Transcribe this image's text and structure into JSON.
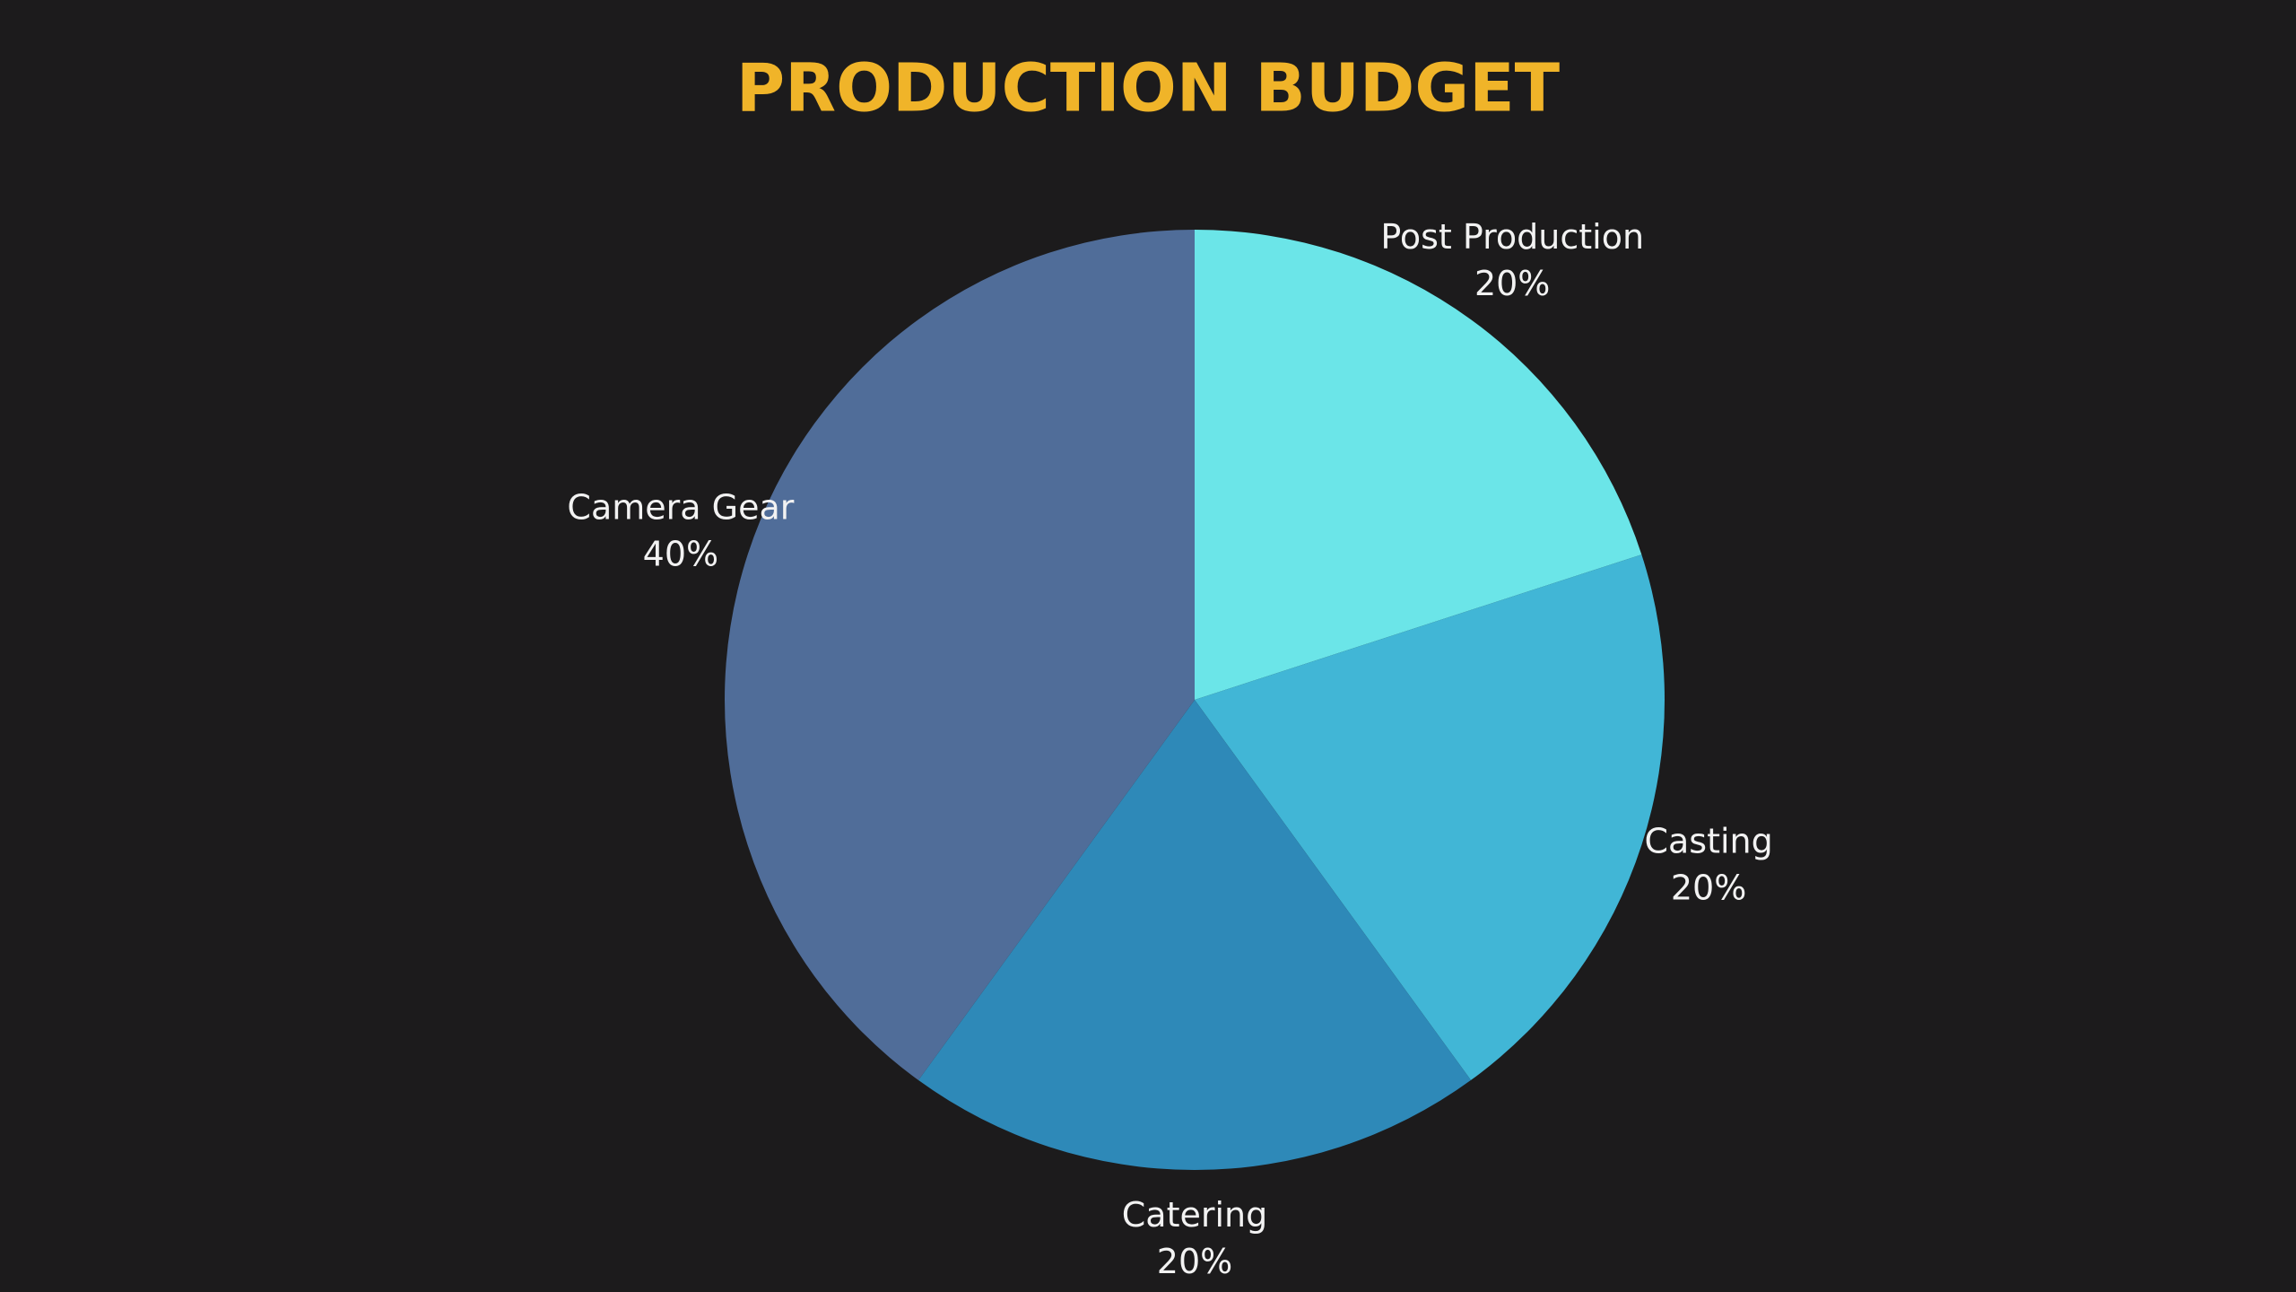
{
  "chart_data": {
    "type": "pie",
    "title": "PRODUCTION BUDGET",
    "categories": [
      "Post Production",
      "Casting",
      "Catering",
      "Camera Gear"
    ],
    "values": [
      20,
      20,
      20,
      40
    ],
    "value_labels": [
      "20%",
      "20%",
      "20%",
      "40%"
    ],
    "colors": [
      "#6be5e8",
      "#41b6d6",
      "#2e89b8",
      "#506d99"
    ]
  }
}
